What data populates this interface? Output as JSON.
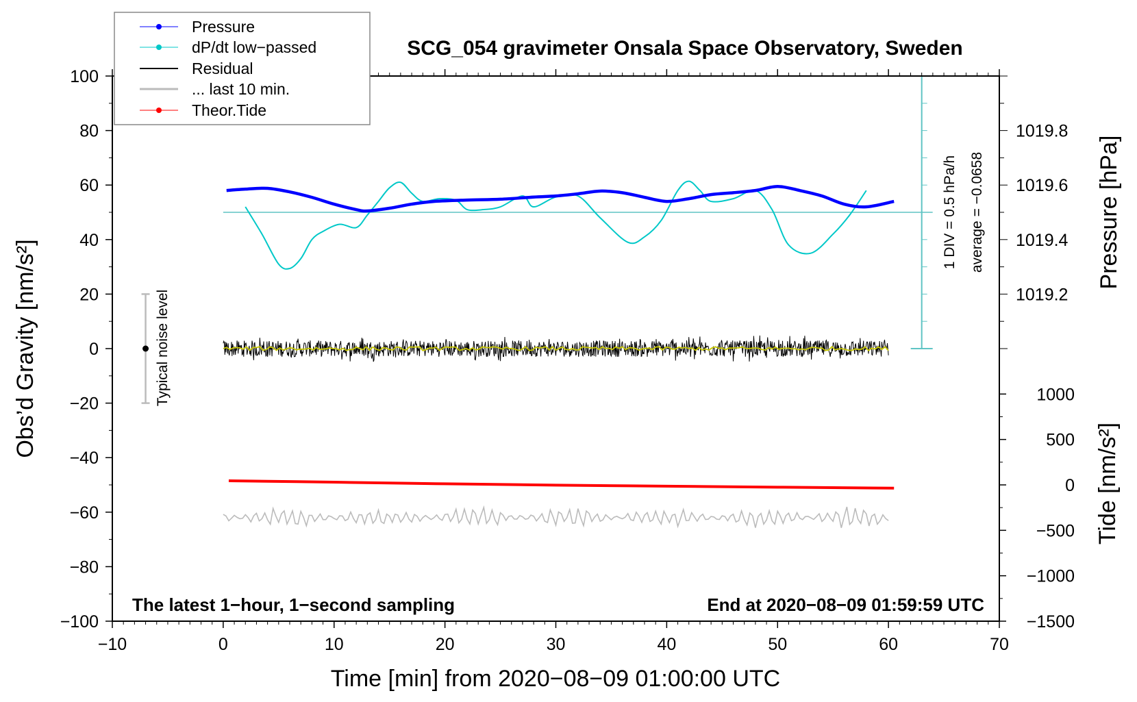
{
  "chart_data": {
    "type": "line",
    "title": "SCG_054 gravimeter Onsala Space Observatory, Sweden",
    "xlabel": "Time [min] from 2020−08−09 01:00:00 UTC",
    "ylabel": "Obs’d Gravity [nm/s²]",
    "ylabel_right_pressure": "Pressure [hPa]",
    "ylabel_right_tide": "Tide [nm/s²]",
    "xlim": [
      -10,
      70
    ],
    "ylim": [
      -100,
      100
    ],
    "pressure_lim": [
      1019.0,
      1020.0
    ],
    "tide_lim": [
      -1500,
      1000
    ],
    "x_ticks": [
      "−10",
      "0",
      "10",
      "20",
      "30",
      "40",
      "50",
      "60",
      "70"
    ],
    "x_tick_values": [
      -10,
      0,
      10,
      20,
      30,
      40,
      50,
      60,
      70
    ],
    "y_ticks": [
      "100",
      "80",
      "60",
      "40",
      "20",
      "0",
      "−20",
      "−40",
      "−60",
      "−80",
      "−100"
    ],
    "y_tick_values": [
      100,
      80,
      60,
      40,
      20,
      0,
      -20,
      -40,
      -60,
      -80,
      -100
    ],
    "pressure_ticks": [
      "1019.8",
      "1019.6",
      "1019.4",
      "1019.2"
    ],
    "pressure_tick_values": [
      1019.8,
      1019.6,
      1019.4,
      1019.2
    ],
    "tide_ticks": [
      "1000",
      "500",
      "0",
      "−500",
      "−1000",
      "−1500"
    ],
    "tide_tick_values": [
      1000,
      500,
      0,
      -500,
      -1000,
      -1500
    ],
    "annotations": {
      "left_bottom": "The latest 1−hour, 1−second sampling",
      "right_bottom": "End at 2020−08−09 01:59:59 UTC",
      "div_label": "1 DIV = 0.5 hPa/h",
      "average_label": "average = −0.0658",
      "noise_label": "Typical noise level"
    },
    "legend": {
      "placement": "top-left",
      "entries": [
        "Pressure",
        "dP/dt low−passed",
        "Residual",
        "... last 10 min.",
        "Theor.Tide"
      ]
    },
    "colors": {
      "pressure": "#0000ff",
      "dpdt": "#00c8c8",
      "dpdt_axis": "#5fc4c4",
      "residual": "#000000",
      "residual_smooth": "#c8c800",
      "last10": "#bbbbbb",
      "tide": "#ff0000"
    },
    "series": [
      {
        "name": "Pressure",
        "unit": "hPa",
        "x": [
          0.3,
          2,
          4,
          6,
          8,
          10,
          12,
          13,
          15,
          17,
          19,
          22,
          25,
          28,
          30,
          32,
          34,
          36,
          38,
          40,
          42,
          44,
          46,
          48,
          50,
          52,
          54,
          56,
          58,
          60.5
        ],
        "y": [
          1019.58,
          1019.585,
          1019.588,
          1019.575,
          1019.555,
          1019.53,
          1019.51,
          1019.505,
          1019.515,
          1019.53,
          1019.54,
          1019.545,
          1019.548,
          1019.556,
          1019.56,
          1019.568,
          1019.578,
          1019.572,
          1019.555,
          1019.54,
          1019.55,
          1019.565,
          1019.572,
          1019.58,
          1019.595,
          1019.58,
          1019.56,
          1019.53,
          1019.52,
          1019.54
        ]
      },
      {
        "name": "dP/dt low−passed",
        "unit": "hPa/h",
        "x": [
          2,
          3.5,
          5,
          6,
          7,
          8,
          9,
          10.5,
          12,
          13,
          14,
          15,
          16,
          17,
          18,
          19.5,
          21,
          22,
          23.5,
          25,
          27,
          28,
          30,
          32,
          34,
          36.5,
          38,
          39.5,
          41,
          42,
          43,
          44,
          46,
          48,
          49.5,
          51,
          53,
          55,
          56.5,
          58
        ],
        "y": [
          0.1,
          -0.4,
          -0.95,
          -1.03,
          -0.85,
          -0.5,
          -0.35,
          -0.22,
          -0.28,
          -0.05,
          0.2,
          0.45,
          0.55,
          0.35,
          0.2,
          0.25,
          0.22,
          0.05,
          0.05,
          0.1,
          0.3,
          0.1,
          0.28,
          0.3,
          -0.1,
          -0.55,
          -0.45,
          -0.15,
          0.4,
          0.57,
          0.4,
          0.2,
          0.25,
          0.4,
          0.05,
          -0.6,
          -0.75,
          -0.4,
          -0.05,
          0.4
        ]
      },
      {
        "name": "Residual",
        "unit": "nm/s²",
        "x_range": [
          0,
          60
        ],
        "mean": 0,
        "noise_amplitude": 3
      },
      {
        "name": "... last 10 min.",
        "unit": "nm/s²",
        "x_range": [
          0,
          60
        ],
        "mean": -62,
        "noise_amplitude": 3
      },
      {
        "name": "Theor.Tide",
        "unit": "nm/s²",
        "x": [
          0.5,
          10,
          20,
          30,
          40,
          50,
          60.5
        ],
        "y": [
          45,
          30,
          12,
          -3,
          -14,
          -25,
          -36
        ]
      }
    ],
    "noise_level_bar": {
      "x": -7,
      "center": 0,
      "range": [
        -20,
        20
      ]
    }
  }
}
